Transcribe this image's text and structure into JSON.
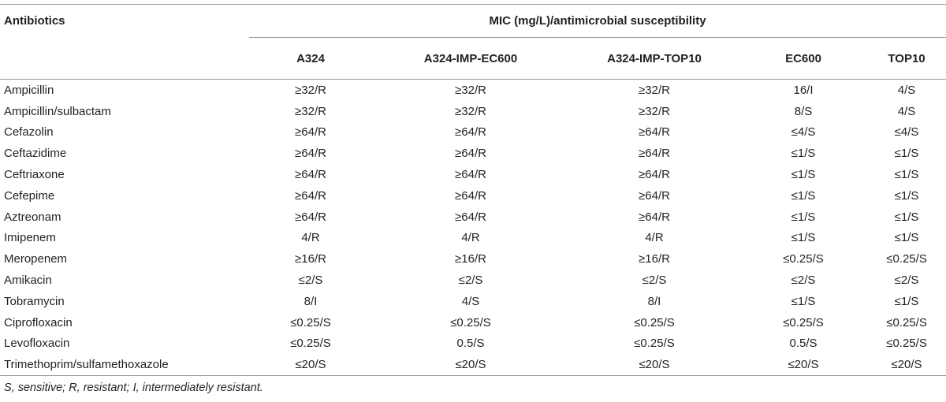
{
  "table": {
    "corner_header": "Antibiotics",
    "group_header": "MIC (mg/L)/antimicrobial susceptibility",
    "columns": [
      "A324",
      "A324-IMP-EC600",
      "A324-IMP-TOP10",
      "EC600",
      "TOP10"
    ],
    "rows": [
      {
        "name": "Ampicillin",
        "values": [
          "≥32/R",
          "≥32/R",
          "≥32/R",
          "16/I",
          "4/S"
        ]
      },
      {
        "name": "Ampicillin/sulbactam",
        "values": [
          "≥32/R",
          "≥32/R",
          "≥32/R",
          "8/S",
          "4/S"
        ]
      },
      {
        "name": "Cefazolin",
        "values": [
          "≥64/R",
          "≥64/R",
          "≥64/R",
          "≤4/S",
          "≤4/S"
        ]
      },
      {
        "name": "Ceftazidime",
        "values": [
          "≥64/R",
          "≥64/R",
          "≥64/R",
          "≤1/S",
          "≤1/S"
        ]
      },
      {
        "name": "Ceftriaxone",
        "values": [
          "≥64/R",
          "≥64/R",
          "≥64/R",
          "≤1/S",
          "≤1/S"
        ]
      },
      {
        "name": "Cefepime",
        "values": [
          "≥64/R",
          "≥64/R",
          "≥64/R",
          "≤1/S",
          "≤1/S"
        ]
      },
      {
        "name": "Aztreonam",
        "values": [
          "≥64/R",
          "≥64/R",
          "≥64/R",
          "≤1/S",
          "≤1/S"
        ]
      },
      {
        "name": "Imipenem",
        "values": [
          "4/R",
          "4/R",
          "4/R",
          "≤1/S",
          "≤1/S"
        ]
      },
      {
        "name": "Meropenem",
        "values": [
          "≥16/R",
          "≥16/R",
          "≥16/R",
          "≤0.25/S",
          "≤0.25/S"
        ]
      },
      {
        "name": "Amikacin",
        "values": [
          "≤2/S",
          "≤2/S",
          "≤2/S",
          "≤2/S",
          "≤2/S"
        ]
      },
      {
        "name": "Tobramycin",
        "values": [
          "8/I",
          "4/S",
          "8/I",
          "≤1/S",
          "≤1/S"
        ]
      },
      {
        "name": "Ciprofloxacin",
        "values": [
          "≤0.25/S",
          "≤0.25/S",
          "≤0.25/S",
          "≤0.25/S",
          "≤0.25/S"
        ]
      },
      {
        "name": "Levofloxacin",
        "values": [
          "≤0.25/S",
          "0.5/S",
          "≤0.25/S",
          "0.5/S",
          "≤0.25/S"
        ]
      },
      {
        "name": "Trimethoprim/sulfamethoxazole",
        "values": [
          "≤20/S",
          "≤20/S",
          "≤20/S",
          "≤20/S",
          "≤20/S"
        ]
      }
    ]
  },
  "footnote": "S, sensitive; R, resistant; I, intermediately resistant."
}
